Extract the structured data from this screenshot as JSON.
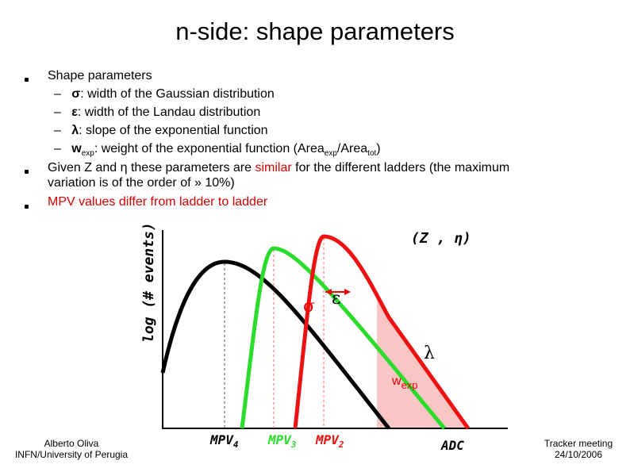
{
  "title": "n-side: shape parameters",
  "bullets": [
    {
      "text": "Shape parameters",
      "sub": [
        {
          "symbol": "σ",
          "text": ": width of the Gaussian distribution"
        },
        {
          "symbol": "ε",
          "text": ": width of the Landau distribution"
        },
        {
          "symbol": "λ",
          "text": ": slope of the exponential function"
        },
        {
          "symbol": "w",
          "symbol_sub": "exp",
          "text": ": weight of the exponential function (Area",
          "sub1": "exp",
          "mid": "/Area",
          "sub2": "tot",
          "end": ")"
        }
      ]
    },
    {
      "text": "Given Z and η these parameters are ",
      "highlight": "similar",
      "text2": " for the different ladders (the maximum",
      "line2": "variation is of the order of  » 10%)"
    },
    {
      "text": "MPV values differ from ladder to ladder"
    }
  ],
  "diagram": {
    "y_label": "log (# events)",
    "corner": "(Z , η)",
    "sigma": "σ",
    "epsilon": "ε",
    "lambda": "λ",
    "w": "w",
    "w_sub": "exp",
    "mpv": [
      {
        "text": "MPV",
        "sub": "4"
      },
      {
        "text": "MPV",
        "sub": "3"
      },
      {
        "text": "MPV",
        "sub": "2"
      }
    ],
    "x_label": "ADC"
  },
  "footer": {
    "left": [
      "Alberto Oliva",
      "INFN/University of Perugia"
    ],
    "right": [
      "Tracker meeting",
      "24/10/2006"
    ]
  }
}
